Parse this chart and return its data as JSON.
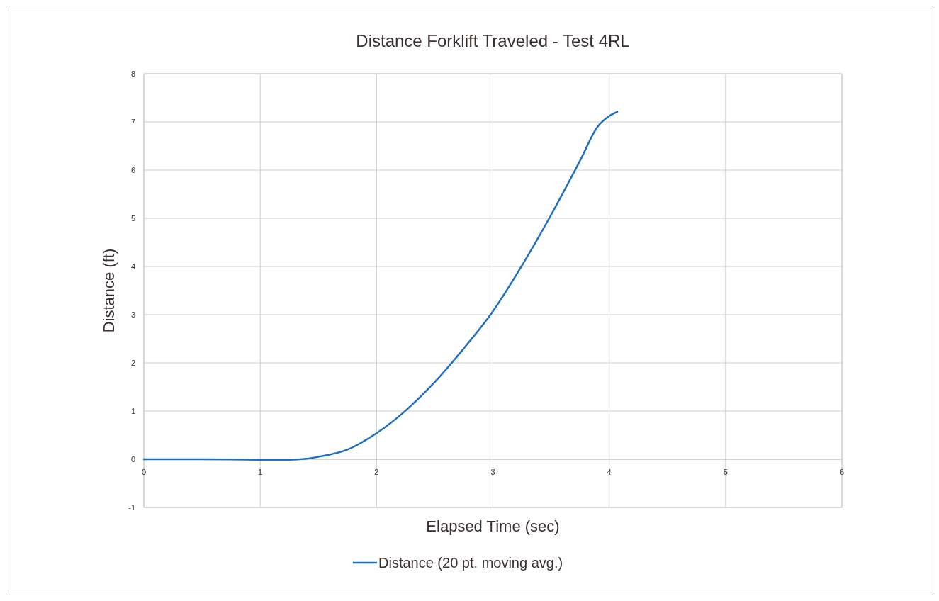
{
  "chart_data": {
    "type": "line",
    "title": "Distance Forklift Traveled - Test 4RL",
    "xlabel": "Elapsed Time (sec)",
    "ylabel": "Distance (ft)",
    "series": [
      {
        "name": "Distance (20 pt. moving avg.)",
        "color": "#1f6fc0",
        "x": [
          0,
          0.5,
          1,
          1.25,
          1.4,
          1.5,
          1.75,
          2,
          2.25,
          2.5,
          2.75,
          3,
          3.25,
          3.5,
          3.75,
          3.9,
          4,
          4.07
        ],
        "values": [
          0,
          0,
          -0.01,
          -0.01,
          0.01,
          0.05,
          0.2,
          0.54,
          1.01,
          1.6,
          2.3,
          3.07,
          4.02,
          5.07,
          6.2,
          6.9,
          7.12,
          7.21
        ]
      }
    ],
    "xlim": [
      0,
      6
    ],
    "xticks": [
      0,
      1,
      2,
      3,
      4,
      5,
      6
    ],
    "ylim": [
      -1,
      8
    ],
    "yticks": [
      -1,
      0,
      1,
      2,
      3,
      4,
      5,
      6,
      7,
      8
    ],
    "grid": true,
    "legend": "bottom",
    "marker": "none",
    "line_style": "solid"
  }
}
